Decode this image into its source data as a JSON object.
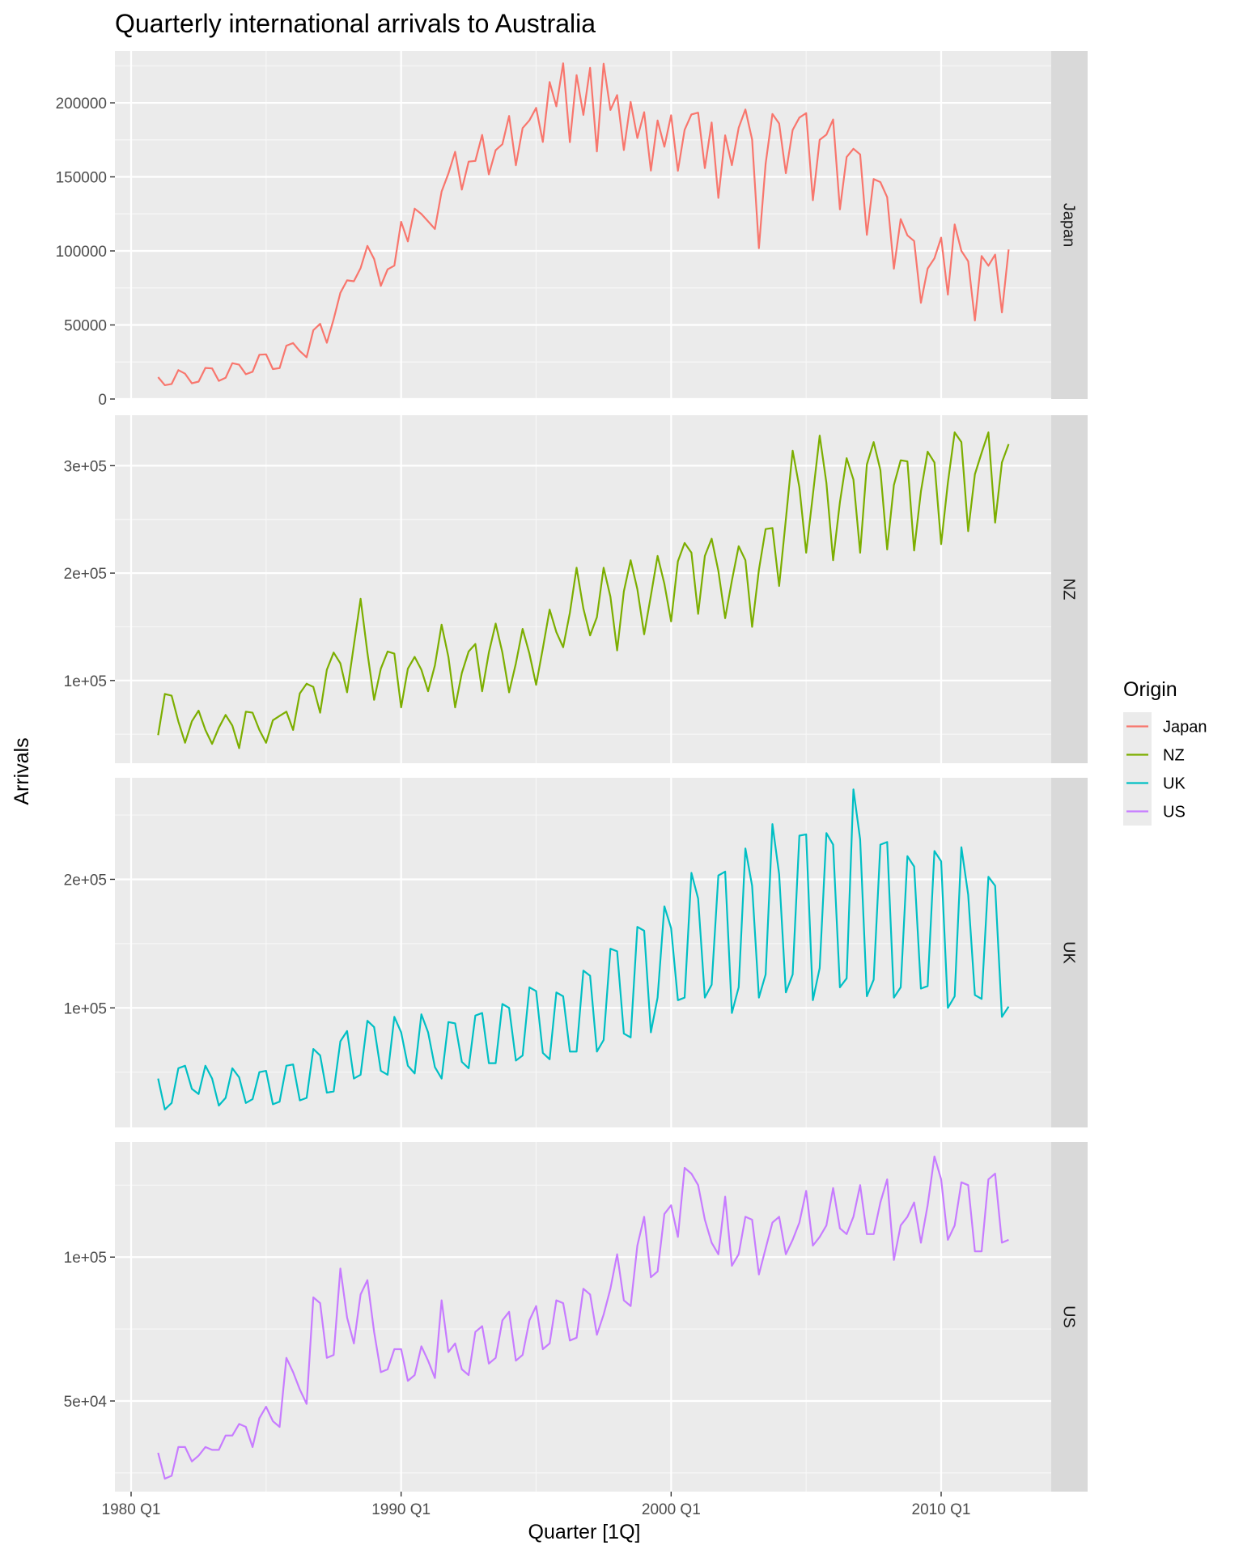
{
  "chart_data": {
    "type": "line",
    "title": "Quarterly international arrivals to Australia",
    "xlabel": "Quarter [1Q]",
    "ylabel": "Arrivals",
    "x_start": "1981 Q1",
    "x_end": "2012 Q3",
    "x_tick_labels": [
      "1980 Q1",
      "1990 Q1",
      "2000 Q1",
      "2010 Q1"
    ],
    "facet_by": "Origin",
    "grid": true,
    "legend": {
      "title": "Origin",
      "position": "right",
      "entries": [
        "Japan",
        "NZ",
        "UK",
        "US"
      ]
    },
    "series": [
      {
        "name": "Japan",
        "color": "#F8766D",
        "ylim": [
          0,
          235000
        ],
        "tick_labels": [
          "0",
          "50000",
          "100000",
          "150000",
          "200000"
        ],
        "values": [
          14763,
          9321,
          10166,
          19509,
          17117,
          10617,
          11737,
          20961,
          20671,
          12235,
          14312,
          24220,
          23171,
          16725,
          18407,
          29892,
          30169,
          20198,
          20886,
          35991,
          37768,
          32327,
          28206,
          46457,
          50777,
          37982,
          53883,
          71717,
          80121,
          79533,
          88440,
          103405,
          94524,
          76400,
          87555,
          90069,
          119681,
          106426,
          128532,
          124943,
          119971,
          114848,
          140049,
          152262,
          166930,
          141379,
          160308,
          160787,
          178300,
          151720,
          167972,
          172052,
          191162,
          157886,
          182936,
          188171,
          196585,
          173591,
          214051,
          197631,
          226716,
          173451,
          218702,
          191812,
          223612,
          167152,
          226441,
          195186,
          205211,
          168114,
          200627,
          176216,
          193659,
          154206,
          188077,
          170347,
          191612,
          154098,
          181749,
          192159,
          193371,
          155908,
          186745,
          135794,
          178040,
          157940,
          183153,
          195500,
          175203,
          101791,
          158796,
          192500,
          186029,
          152500,
          181667,
          190000,
          193001,
          134218,
          174981,
          178500,
          188773,
          128048,
          163342,
          168990,
          165178,
          110854,
          148526,
          146453,
          136233,
          88000,
          121500,
          110500,
          106667,
          65000,
          88035,
          95000,
          109000,
          70500,
          117900,
          100000,
          93000,
          53000,
          96500,
          90000,
          97500,
          58500,
          101000
        ]
      },
      {
        "name": "NZ",
        "color": "#7CAE00",
        "ylim": [
          23000,
          347000
        ],
        "tick_labels": [
          "1e+05",
          "2e+05",
          "3e+05"
        ],
        "values": [
          49140,
          87467,
          85841,
          61882,
          42045,
          62000,
          72000,
          54000,
          41000,
          56000,
          68000,
          58000,
          37000,
          71000,
          70000,
          54000,
          42000,
          63000,
          67000,
          71000,
          54000,
          88000,
          97000,
          94000,
          70000,
          110000,
          126000,
          116000,
          89000,
          133000,
          176000,
          126000,
          82000,
          111000,
          127000,
          125000,
          75000,
          111000,
          122000,
          110000,
          90000,
          114000,
          152000,
          122000,
          75000,
          107000,
          127000,
          134000,
          90000,
          126000,
          153000,
          126000,
          89000,
          116000,
          148000,
          125000,
          96000,
          130000,
          166000,
          145000,
          131000,
          163000,
          205000,
          167000,
          142000,
          159000,
          205000,
          178000,
          128000,
          183000,
          212000,
          185000,
          143000,
          179000,
          216000,
          190000,
          155000,
          211000,
          228000,
          219000,
          162000,
          216000,
          232000,
          202000,
          158000,
          193000,
          225000,
          212000,
          150000,
          203000,
          241000,
          242000,
          188000,
          250000,
          314000,
          280000,
          219000,
          273000,
          328000,
          284000,
          212000,
          266000,
          307000,
          287000,
          219000,
          301000,
          322000,
          296000,
          222000,
          282000,
          305000,
          304000,
          221000,
          276000,
          313000,
          303000,
          227000,
          284000,
          331000,
          322000,
          239000,
          292000,
          312000,
          331000,
          247000,
          303000,
          320000
        ]
      },
      {
        "name": "UK",
        "color": "#00BFC4",
        "ylim": [
          7000,
          279000
        ],
        "tick_labels": [
          "1e+05",
          "2e+05"
        ],
        "values": [
          45000,
          21000,
          26000,
          53000,
          55000,
          37000,
          33000,
          55000,
          45000,
          24000,
          30000,
          53000,
          46000,
          26000,
          29000,
          50000,
          51000,
          25000,
          27000,
          55000,
          56000,
          28000,
          30000,
          68000,
          63000,
          34000,
          35000,
          74000,
          82000,
          45000,
          48000,
          90000,
          85000,
          51000,
          48000,
          93000,
          81000,
          55000,
          49000,
          95000,
          81000,
          54000,
          45000,
          89000,
          88000,
          58000,
          53000,
          94000,
          96000,
          57000,
          57000,
          103000,
          100000,
          59000,
          63000,
          116000,
          113000,
          65000,
          60000,
          112000,
          109000,
          66000,
          66000,
          129000,
          125000,
          66000,
          75000,
          146000,
          144000,
          80000,
          77000,
          163000,
          160000,
          81000,
          108000,
          179000,
          162000,
          106000,
          108000,
          205000,
          185000,
          108000,
          118000,
          203000,
          206000,
          96000,
          116000,
          224000,
          195000,
          108000,
          126000,
          243000,
          204000,
          112000,
          126000,
          234000,
          235000,
          106000,
          131000,
          236000,
          227000,
          116000,
          123000,
          270000,
          231000,
          109000,
          122000,
          227000,
          229000,
          108000,
          116000,
          218000,
          210000,
          115000,
          117000,
          222000,
          214000,
          100000,
          109000,
          225000,
          188000,
          110000,
          107000,
          202000,
          195000,
          93000,
          101000
        ]
      },
      {
        "name": "US",
        "color": "#C77CFF",
        "ylim": [
          18500,
          140000
        ],
        "tick_labels": [
          "5e+04",
          "1e+05"
        ],
        "values": [
          32000,
          23000,
          24000,
          34000,
          34000,
          29000,
          31000,
          34000,
          33000,
          33000,
          38000,
          38000,
          42000,
          41000,
          34000,
          44000,
          48000,
          43000,
          41000,
          65000,
          60000,
          54000,
          49000,
          86000,
          84000,
          65000,
          66000,
          96000,
          79000,
          70000,
          87000,
          92000,
          74000,
          60000,
          61000,
          68000,
          68000,
          57000,
          59000,
          69000,
          64000,
          58000,
          85000,
          67000,
          70000,
          61000,
          59000,
          74000,
          76000,
          63000,
          65000,
          78000,
          81000,
          64000,
          66000,
          78000,
          83000,
          68000,
          70000,
          85000,
          84000,
          71000,
          72000,
          89000,
          87000,
          73000,
          80000,
          89000,
          101000,
          85000,
          83000,
          104000,
          114000,
          93000,
          95000,
          115000,
          118000,
          107000,
          131000,
          129000,
          125000,
          113000,
          105000,
          101000,
          121000,
          97000,
          101000,
          114000,
          113000,
          94000,
          103000,
          112000,
          114000,
          101000,
          106000,
          112000,
          123000,
          104000,
          107000,
          111000,
          124000,
          110000,
          108000,
          114000,
          125000,
          108000,
          108000,
          119000,
          127000,
          99000,
          111000,
          114000,
          119000,
          105000,
          118000,
          135000,
          127000,
          106000,
          111000,
          126000,
          125000,
          102000,
          102000,
          127000,
          129000,
          105000,
          106000
        ]
      }
    ]
  }
}
